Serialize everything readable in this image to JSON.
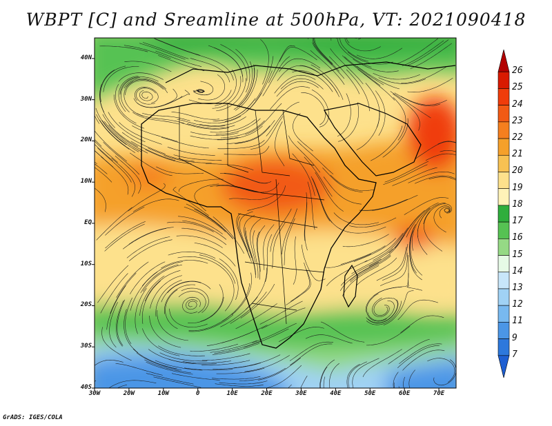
{
  "title": "WBPT [C] and Sreamline at 500hPa, VT: 2021090418",
  "credit": "GrADS: IGES/COLA",
  "map": {
    "lat_labels": [
      "40N",
      "30N",
      "20N",
      "10N",
      "EQ",
      "10S",
      "20S",
      "30S",
      "40S"
    ],
    "lon_labels": [
      "30W",
      "20W",
      "10W",
      "0",
      "10E",
      "20E",
      "30E",
      "40E",
      "50E",
      "60E",
      "70E"
    ],
    "lat_range": [
      -40,
      45
    ],
    "lon_range": [
      -30,
      75
    ]
  },
  "colorbar": {
    "labels": [
      "26",
      "25",
      "24",
      "23",
      "22",
      "21",
      "20",
      "19",
      "18",
      "17",
      "16",
      "15",
      "14",
      "13",
      "12",
      "11",
      "9",
      "7"
    ],
    "colors": [
      "#b30000",
      "#d91a00",
      "#f03c0a",
      "#f25a14",
      "#f57f1e",
      "#f5a02a",
      "#f7c152",
      "#fde18c",
      "#fff3b8",
      "#2fae3c",
      "#56c253",
      "#95d985",
      "#e6fae6",
      "#c8e6fa",
      "#a0d2f5",
      "#78b9f0",
      "#4b96e6",
      "#2d78dc",
      "#1e5fd2"
    ]
  }
}
